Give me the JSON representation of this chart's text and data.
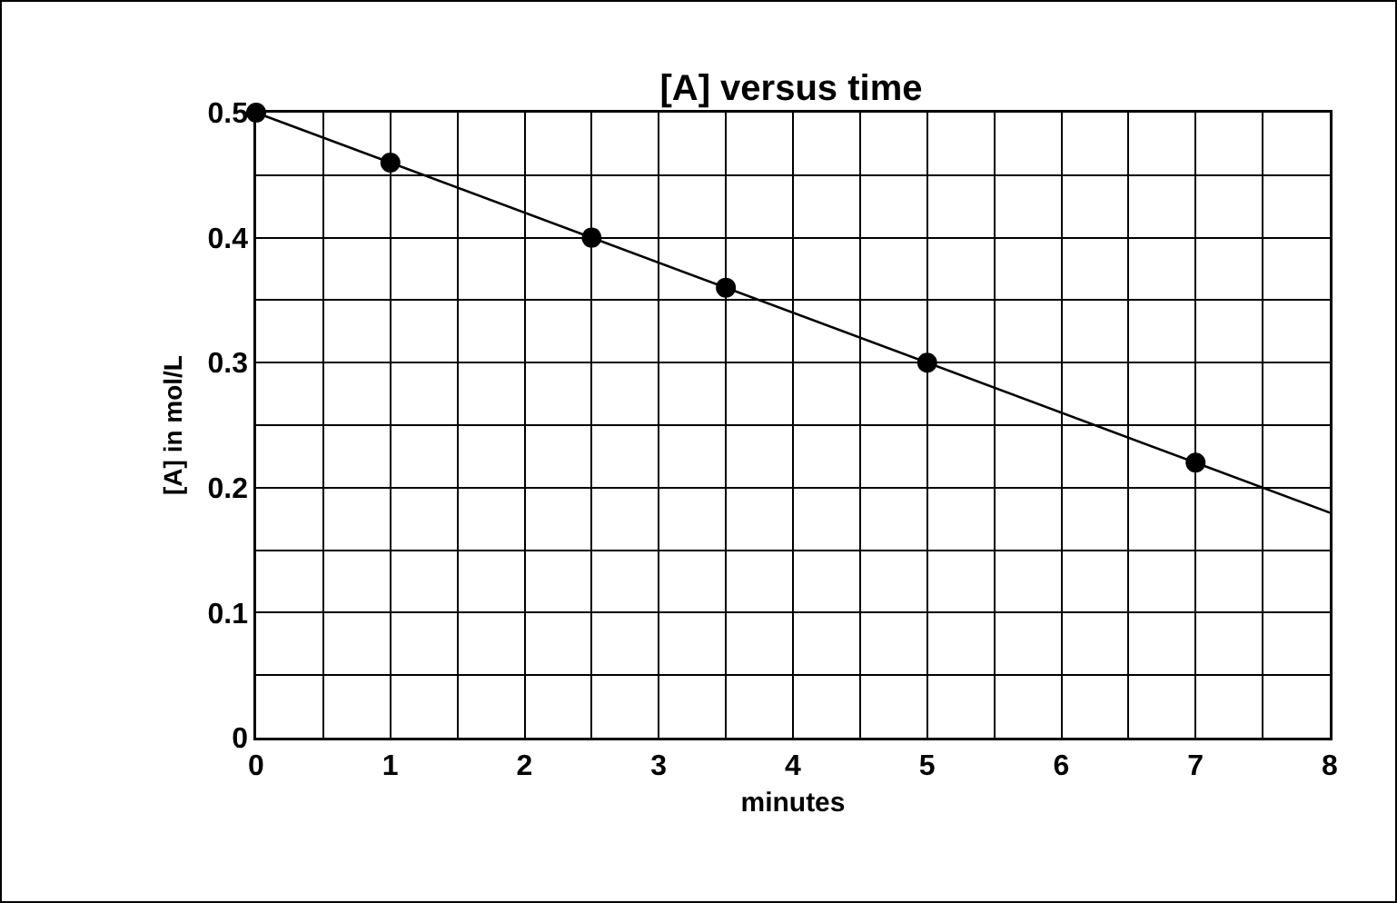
{
  "chart_data": {
    "type": "scatter",
    "title": "[A] versus time",
    "xlabel": "minutes",
    "ylabel": "[A] in mol/L",
    "x": [
      0,
      1,
      2.5,
      3.5,
      5,
      7
    ],
    "series": [
      {
        "color": "#000000",
        "values": [
          0.5,
          0.46,
          0.4,
          0.36,
          0.3,
          0.22
        ],
        "marker": "circle"
      },
      {
        "type": "line",
        "color": "#000000",
        "x": [
          0,
          8
        ],
        "values": [
          0.5,
          0.18
        ],
        "marker": "none",
        "line_style": "solid"
      }
    ],
    "xlim": [
      0,
      8
    ],
    "xticks": [
      0,
      {
        "value": 0.5,
        "label": null
      },
      1,
      {
        "value": 1.5,
        "label": null
      },
      2,
      {
        "value": 2.5,
        "label": null
      },
      3,
      {
        "value": 3.5,
        "label": null
      },
      4,
      {
        "value": 4.5,
        "label": null
      },
      5,
      {
        "value": 5.5,
        "label": null
      },
      6,
      {
        "value": 6.5,
        "label": null
      },
      7,
      {
        "value": 7.5,
        "label": null
      },
      8
    ],
    "ylim": [
      0,
      0.5
    ],
    "yticks": [
      0,
      {
        "value": 0.05,
        "label": null
      },
      0.1,
      {
        "value": 0.15,
        "label": null
      },
      0.2,
      {
        "value": 0.25,
        "label": null
      },
      0.3,
      {
        "value": 0.35,
        "label": null
      },
      0.4,
      {
        "value": 0.45,
        "label": null
      },
      0.5
    ],
    "grid": true
  }
}
